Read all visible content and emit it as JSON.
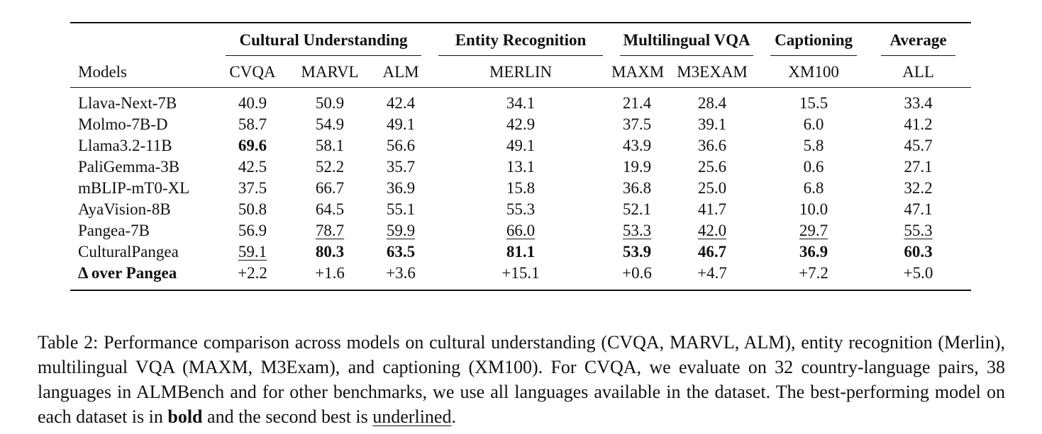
{
  "table": {
    "groups": {
      "cultural": "Cultural Understanding",
      "entity": "Entity Recognition",
      "vqa": "Multilingual VQA",
      "captioning": "Captioning",
      "average": "Average"
    },
    "columns": {
      "models": "Models",
      "cvqa": "CVQA",
      "marvl": "MARVL",
      "alm": "ALM",
      "merlin": "MERLIN",
      "maxm": "MAXM",
      "m3exam": "M3EXAM",
      "xm100": "XM100",
      "all": "ALL"
    },
    "rows": [
      {
        "model": "Llava-Next-7B",
        "cells": [
          "40.9",
          "50.9",
          "42.4",
          "34.1",
          "21.4",
          "28.4",
          "15.5",
          "33.4"
        ]
      },
      {
        "model": "Molmo-7B-D",
        "cells": [
          "58.7",
          "54.9",
          "49.1",
          "42.9",
          "37.5",
          "39.1",
          "6.0",
          "41.2"
        ]
      },
      {
        "model": "Llama3.2-11B",
        "cells": [
          "69.6",
          "58.1",
          "56.6",
          "49.1",
          "43.9",
          "36.6",
          "5.8",
          "45.7"
        ]
      },
      {
        "model": "PaliGemma-3B",
        "cells": [
          "42.5",
          "52.2",
          "35.7",
          "13.1",
          "19.9",
          "25.6",
          "0.6",
          "27.1"
        ]
      },
      {
        "model": "mBLIP-mT0-XL",
        "cells": [
          "37.5",
          "66.7",
          "36.9",
          "15.8",
          "36.8",
          "25.0",
          "6.8",
          "32.2"
        ]
      },
      {
        "model": "AyaVision-8B",
        "cells": [
          "50.8",
          "64.5",
          "55.1",
          "55.3",
          "52.1",
          "41.7",
          "10.0",
          "47.1"
        ]
      },
      {
        "model": "Pangea-7B",
        "cells": [
          "56.9",
          "78.7",
          "59.9",
          "66.0",
          "53.3",
          "42.0",
          "29.7",
          "55.3"
        ]
      },
      {
        "model": "CulturalPangea",
        "cells": [
          "59.1",
          "80.3",
          "63.5",
          "81.1",
          "53.9",
          "46.7",
          "36.9",
          "60.3"
        ]
      },
      {
        "model": "Δ over Pangea",
        "cells": [
          "+2.2",
          "+1.6",
          "+3.6",
          "+15.1",
          "+0.6",
          "+4.7",
          "+7.2",
          "+5.0"
        ]
      }
    ]
  },
  "caption": {
    "part1": "Table 2: Performance comparison across models on cultural understanding (CVQA, MARVL, ALM), entity recognition (Merlin), multilingual VQA (MAXM, M3Exam), and captioning (XM100). For CVQA, we evaluate on 32 country-language pairs, 38 languages in ALMBench and for other benchmarks, we use all languages available in the dataset. The best-performing model on each dataset is in ",
    "bold_word": "bold",
    "part2": " and the second best is ",
    "underline_word": "underlined",
    "part3": "."
  }
}
